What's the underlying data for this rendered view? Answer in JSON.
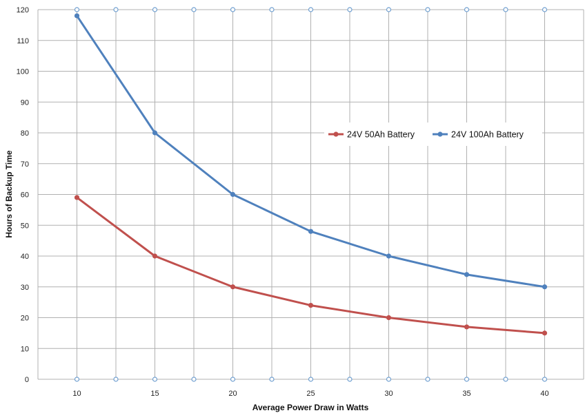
{
  "chart_data": {
    "type": "line",
    "title": "",
    "xlabel": "Average Power Draw in Watts",
    "ylabel": "Hours of Backup Time",
    "x": [
      10,
      15,
      20,
      25,
      30,
      35,
      40
    ],
    "x_ticks": [
      "10",
      "15",
      "20",
      "25",
      "30",
      "35",
      "40"
    ],
    "y_ticks": [
      "0",
      "10",
      "20",
      "30",
      "40",
      "50",
      "60",
      "70",
      "80",
      "90",
      "100",
      "110",
      "120"
    ],
    "xlim": [
      7.5,
      42.5
    ],
    "ylim": [
      0,
      120
    ],
    "grid": true,
    "legend_position": "center-right",
    "series": [
      {
        "name": "24V 50Ah Battery",
        "color": "#c0504d",
        "values": [
          59,
          40,
          30,
          24,
          20,
          17,
          15
        ]
      },
      {
        "name": "24V 100Ah Battery",
        "color": "#4f81bd",
        "values": [
          118,
          80,
          60,
          48,
          40,
          34,
          30
        ]
      }
    ],
    "gridline_color": "#b0b0b0",
    "gridline_marker_color": "#6f9fd0"
  }
}
